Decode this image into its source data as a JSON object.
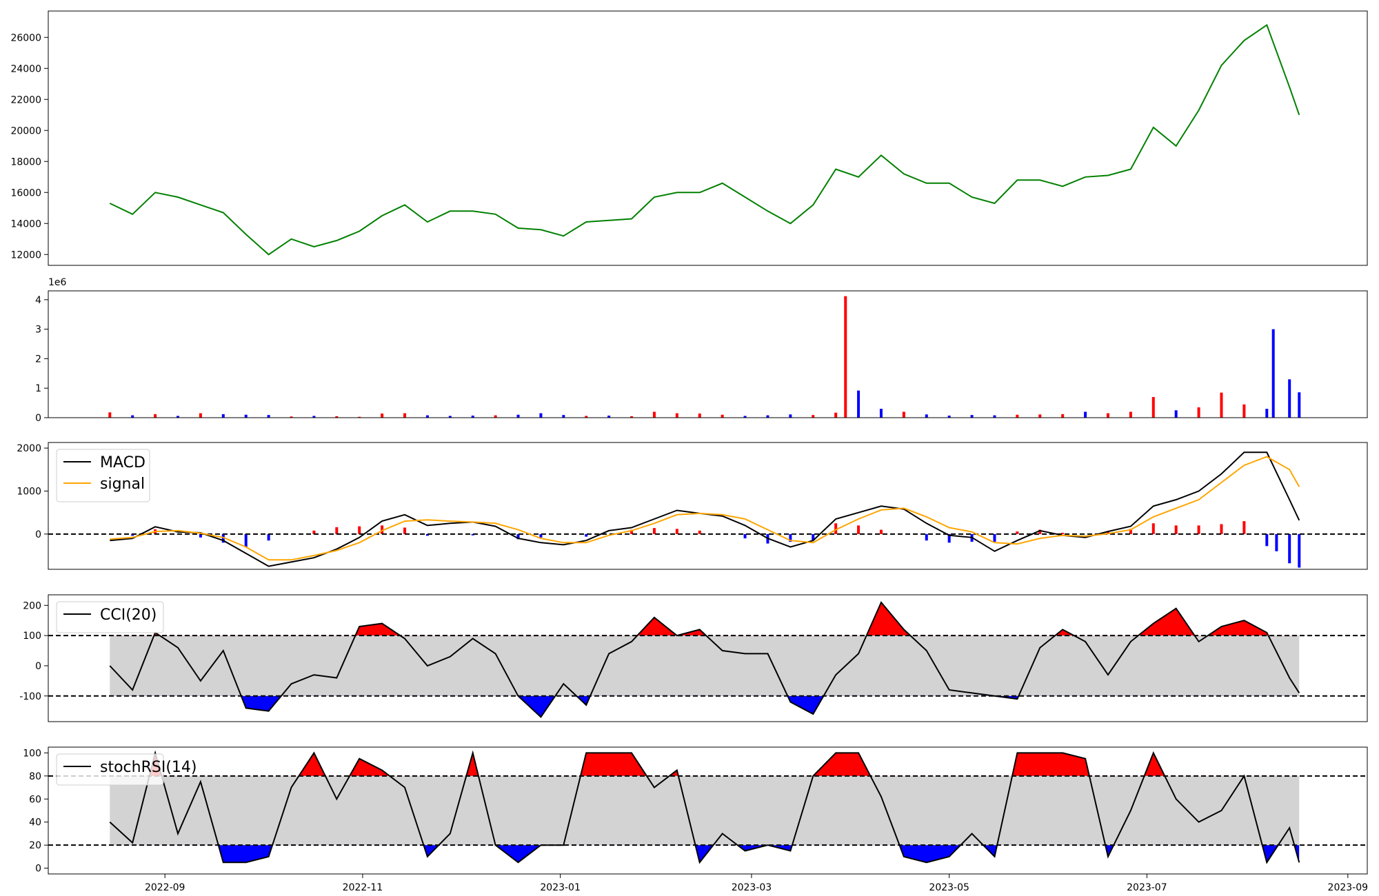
{
  "chart_data": [
    {
      "panel": "price",
      "type": "line",
      "line_color": "#008000",
      "ylim": [
        11300,
        27700
      ],
      "yticks": [
        "12000",
        "14000",
        "16000",
        "18000",
        "20000",
        "22000",
        "24000",
        "26000"
      ],
      "x": [
        "2022-08-15",
        "2022-08-22",
        "2022-08-29",
        "2022-09-05",
        "2022-09-12",
        "2022-09-19",
        "2022-09-26",
        "2022-10-03",
        "2022-10-10",
        "2022-10-17",
        "2022-10-24",
        "2022-10-31",
        "2022-11-07",
        "2022-11-14",
        "2022-11-21",
        "2022-11-28",
        "2022-12-05",
        "2022-12-12",
        "2022-12-19",
        "2022-12-26",
        "2023-01-02",
        "2023-01-09",
        "2023-01-16",
        "2023-01-23",
        "2023-01-30",
        "2023-02-06",
        "2023-02-13",
        "2023-02-20",
        "2023-02-27",
        "2023-03-06",
        "2023-03-13",
        "2023-03-20",
        "2023-03-27",
        "2023-04-03",
        "2023-04-10",
        "2023-04-17",
        "2023-04-24",
        "2023-05-01",
        "2023-05-08",
        "2023-05-15",
        "2023-05-22",
        "2023-05-29",
        "2023-06-05",
        "2023-06-12",
        "2023-06-19",
        "2023-06-26",
        "2023-07-03",
        "2023-07-10",
        "2023-07-17",
        "2023-07-24",
        "2023-07-31",
        "2023-08-07",
        "2023-08-14",
        "2023-08-17"
      ],
      "values": [
        15300,
        14600,
        16000,
        15700,
        15200,
        14700,
        13300,
        12000,
        13000,
        12500,
        12900,
        13500,
        14500,
        15200,
        14100,
        14800,
        14800,
        14600,
        13700,
        13600,
        13200,
        14100,
        14200,
        14300,
        15700,
        16000,
        16000,
        16600,
        15700,
        14800,
        14000,
        15200,
        17500,
        17000,
        18400,
        17200,
        16600,
        16600,
        15700,
        15300,
        16800,
        16800,
        16400,
        17000,
        17100,
        17500,
        20200,
        19000,
        21300,
        24200,
        25800,
        26800,
        22800,
        21000
      ]
    },
    {
      "panel": "volume",
      "type": "bar",
      "offset_label": "1e6",
      "ylim": [
        0,
        4300000
      ],
      "yticks": [
        "0",
        "1",
        "2",
        "3",
        "4"
      ],
      "up_color": "#ff0000",
      "down_color": "#0000ff",
      "x": [
        "2022-08-15",
        "2022-08-22",
        "2022-08-29",
        "2022-09-05",
        "2022-09-12",
        "2022-09-19",
        "2022-09-26",
        "2022-10-03",
        "2022-10-10",
        "2022-10-17",
        "2022-10-24",
        "2022-10-31",
        "2022-11-07",
        "2022-11-14",
        "2022-11-21",
        "2022-11-28",
        "2022-12-05",
        "2022-12-12",
        "2022-12-19",
        "2022-12-26",
        "2023-01-02",
        "2023-01-09",
        "2023-01-16",
        "2023-01-23",
        "2023-01-30",
        "2023-02-06",
        "2023-02-13",
        "2023-02-20",
        "2023-02-27",
        "2023-03-06",
        "2023-03-13",
        "2023-03-20",
        "2023-03-27",
        "2023-03-30",
        "2023-04-03",
        "2023-04-10",
        "2023-04-17",
        "2023-04-24",
        "2023-05-01",
        "2023-05-08",
        "2023-05-15",
        "2023-05-22",
        "2023-05-29",
        "2023-06-05",
        "2023-06-12",
        "2023-06-19",
        "2023-06-26",
        "2023-07-03",
        "2023-07-10",
        "2023-07-17",
        "2023-07-24",
        "2023-07-31",
        "2023-08-07",
        "2023-08-09",
        "2023-08-14",
        "2023-08-17"
      ],
      "values": [
        180000,
        80000,
        120000,
        60000,
        150000,
        120000,
        100000,
        90000,
        40000,
        60000,
        50000,
        30000,
        140000,
        150000,
        80000,
        60000,
        70000,
        80000,
        100000,
        150000,
        90000,
        60000,
        70000,
        50000,
        200000,
        150000,
        140000,
        100000,
        60000,
        80000,
        110000,
        90000,
        170000,
        4120000,
        920000,
        300000,
        200000,
        110000,
        70000,
        90000,
        80000,
        100000,
        110000,
        120000,
        200000,
        150000,
        200000,
        700000,
        250000,
        350000,
        850000,
        450000,
        300000,
        3000000,
        1300000,
        860000
      ],
      "direction": [
        "up",
        "down",
        "up",
        "down",
        "up",
        "down",
        "down",
        "down",
        "up",
        "down",
        "up",
        "up",
        "up",
        "up",
        "down",
        "down",
        "down",
        "up",
        "down",
        "down",
        "down",
        "up",
        "down",
        "up",
        "up",
        "up",
        "up",
        "up",
        "down",
        "down",
        "down",
        "up",
        "up",
        "up",
        "down",
        "down",
        "up",
        "down",
        "down",
        "down",
        "down",
        "up",
        "up",
        "up",
        "down",
        "up",
        "up",
        "up",
        "down",
        "up",
        "up",
        "up",
        "down",
        "down",
        "down",
        "down"
      ]
    },
    {
      "panel": "macd",
      "type": "line",
      "ylim": [
        -820,
        2130
      ],
      "yticks": [
        "0",
        "1000",
        "2000"
      ],
      "zero_line": true,
      "legend": [
        {
          "name": "MACD",
          "color": "#000000"
        },
        {
          "name": "signal",
          "color": "#ffa500"
        }
      ],
      "series": [
        {
          "name": "MACD",
          "color": "#000000",
          "x": [
            "2022-08-15",
            "2022-08-22",
            "2022-08-29",
            "2022-09-05",
            "2022-09-12",
            "2022-09-19",
            "2022-09-26",
            "2022-10-03",
            "2022-10-10",
            "2022-10-17",
            "2022-10-24",
            "2022-10-31",
            "2022-11-07",
            "2022-11-14",
            "2022-11-21",
            "2022-11-28",
            "2022-12-05",
            "2022-12-12",
            "2022-12-19",
            "2022-12-26",
            "2023-01-02",
            "2023-01-09",
            "2023-01-16",
            "2023-01-23",
            "2023-01-30",
            "2023-02-06",
            "2023-02-13",
            "2023-02-20",
            "2023-02-27",
            "2023-03-06",
            "2023-03-13",
            "2023-03-20",
            "2023-03-27",
            "2023-04-03",
            "2023-04-10",
            "2023-04-17",
            "2023-04-24",
            "2023-05-01",
            "2023-05-08",
            "2023-05-15",
            "2023-05-22",
            "2023-05-29",
            "2023-06-05",
            "2023-06-12",
            "2023-06-19",
            "2023-06-26",
            "2023-07-03",
            "2023-07-10",
            "2023-07-17",
            "2023-07-24",
            "2023-07-31",
            "2023-08-07",
            "2023-08-14",
            "2023-08-17"
          ],
          "values": [
            -150,
            -100,
            170,
            50,
            30,
            -150,
            -450,
            -750,
            -650,
            -550,
            -350,
            -80,
            300,
            450,
            200,
            250,
            280,
            180,
            -100,
            -200,
            -250,
            -150,
            80,
            150,
            350,
            550,
            480,
            420,
            200,
            -100,
            -300,
            -150,
            350,
            500,
            650,
            580,
            250,
            -30,
            -80,
            -400,
            -150,
            80,
            -30,
            -80,
            60,
            180,
            650,
            800,
            1000,
            1400,
            1900,
            1900,
            800,
            320
          ]
        },
        {
          "name": "signal",
          "color": "#ffa500",
          "x": [
            "2022-08-15",
            "2022-08-22",
            "2022-08-29",
            "2022-09-05",
            "2022-09-12",
            "2022-09-19",
            "2022-09-26",
            "2022-10-03",
            "2022-10-10",
            "2022-10-17",
            "2022-10-24",
            "2022-10-31",
            "2022-11-07",
            "2022-11-14",
            "2022-11-21",
            "2022-11-28",
            "2022-12-05",
            "2022-12-12",
            "2022-12-19",
            "2022-12-26",
            "2023-01-02",
            "2023-01-09",
            "2023-01-16",
            "2023-01-23",
            "2023-01-30",
            "2023-02-06",
            "2023-02-13",
            "2023-02-20",
            "2023-02-27",
            "2023-03-06",
            "2023-03-13",
            "2023-03-20",
            "2023-03-27",
            "2023-04-03",
            "2023-04-10",
            "2023-04-17",
            "2023-04-24",
            "2023-05-01",
            "2023-05-08",
            "2023-05-15",
            "2023-05-22",
            "2023-05-29",
            "2023-06-05",
            "2023-06-12",
            "2023-06-19",
            "2023-06-26",
            "2023-07-03",
            "2023-07-10",
            "2023-07-17",
            "2023-07-24",
            "2023-07-31",
            "2023-08-07",
            "2023-08-14",
            "2023-08-17"
          ],
          "values": [
            -120,
            -80,
            60,
            80,
            20,
            -80,
            -300,
            -600,
            -600,
            -500,
            -380,
            -200,
            80,
            300,
            330,
            300,
            280,
            250,
            100,
            -100,
            -200,
            -200,
            -30,
            80,
            250,
            450,
            480,
            450,
            350,
            100,
            -150,
            -200,
            100,
            350,
            560,
            600,
            400,
            150,
            50,
            -200,
            -230,
            -100,
            -30,
            -50,
            10,
            100,
            400,
            600,
            800,
            1200,
            1600,
            1800,
            1500,
            1100
          ]
        }
      ],
      "histogram": {
        "x": [
          "2022-08-22",
          "2022-08-29",
          "2022-09-12",
          "2022-09-19",
          "2022-09-26",
          "2022-10-03",
          "2022-10-17",
          "2022-10-24",
          "2022-10-31",
          "2022-11-07",
          "2022-11-14",
          "2022-11-21",
          "2022-12-05",
          "2022-12-19",
          "2022-12-26",
          "2023-01-09",
          "2023-01-23",
          "2023-01-30",
          "2023-02-06",
          "2023-02-13",
          "2023-02-27",
          "2023-03-06",
          "2023-03-13",
          "2023-03-20",
          "2023-03-27",
          "2023-04-03",
          "2023-04-10",
          "2023-04-24",
          "2023-05-01",
          "2023-05-08",
          "2023-05-15",
          "2023-05-22",
          "2023-05-29",
          "2023-06-05",
          "2023-06-19",
          "2023-06-26",
          "2023-07-03",
          "2023-07-10",
          "2023-07-17",
          "2023-07-24",
          "2023-07-31",
          "2023-08-07",
          "2023-08-10",
          "2023-08-14",
          "2023-08-17"
        ],
        "values": [
          -40,
          110,
          -80,
          -200,
          -300,
          -150,
          80,
          160,
          180,
          200,
          150,
          -40,
          -30,
          -120,
          -80,
          -60,
          100,
          140,
          120,
          80,
          -100,
          -220,
          -180,
          -150,
          250,
          200,
          100,
          -150,
          -200,
          -180,
          -180,
          60,
          100,
          30,
          60,
          120,
          250,
          200,
          200,
          230,
          300,
          -280,
          -400,
          -680,
          -780
        ]
      }
    },
    {
      "panel": "cci",
      "type": "line",
      "ylim": [
        -185,
        235
      ],
      "yticks": [
        "-100",
        "0",
        "100",
        "200"
      ],
      "thresholds": [
        100,
        -100
      ],
      "legend": [
        {
          "name": "CCI(20)",
          "color": "#000000"
        }
      ],
      "series": [
        {
          "name": "CCI(20)",
          "color": "#000000",
          "x": [
            "2022-08-15",
            "2022-08-22",
            "2022-08-29",
            "2022-09-05",
            "2022-09-12",
            "2022-09-19",
            "2022-09-26",
            "2022-10-03",
            "2022-10-10",
            "2022-10-17",
            "2022-10-24",
            "2022-10-31",
            "2022-11-07",
            "2022-11-14",
            "2022-11-21",
            "2022-11-28",
            "2022-12-05",
            "2022-12-12",
            "2022-12-19",
            "2022-12-26",
            "2023-01-02",
            "2023-01-09",
            "2023-01-16",
            "2023-01-23",
            "2023-01-30",
            "2023-02-06",
            "2023-02-13",
            "2023-02-20",
            "2023-02-27",
            "2023-03-06",
            "2023-03-13",
            "2023-03-20",
            "2023-03-27",
            "2023-04-03",
            "2023-04-10",
            "2023-04-17",
            "2023-04-24",
            "2023-05-01",
            "2023-05-08",
            "2023-05-15",
            "2023-05-22",
            "2023-05-29",
            "2023-06-05",
            "2023-06-12",
            "2023-06-19",
            "2023-06-26",
            "2023-07-03",
            "2023-07-10",
            "2023-07-17",
            "2023-07-24",
            "2023-07-31",
            "2023-08-07",
            "2023-08-14",
            "2023-08-17"
          ],
          "values": [
            0,
            -80,
            110,
            60,
            -50,
            50,
            -140,
            -150,
            -60,
            -30,
            -40,
            130,
            140,
            90,
            0,
            30,
            90,
            40,
            -100,
            -170,
            -60,
            -130,
            40,
            80,
            160,
            100,
            120,
            50,
            40,
            40,
            -120,
            -160,
            -30,
            40,
            210,
            120,
            50,
            -80,
            -90,
            -100,
            -110,
            60,
            120,
            80,
            -30,
            80,
            140,
            190,
            80,
            130,
            150,
            110,
            -40,
            -90
          ]
        }
      ],
      "fill_upper_color": "#ff0000",
      "fill_lower_color": "#0000ff",
      "band_color": "#d3d3d3"
    },
    {
      "panel": "stochrsi",
      "type": "line",
      "ylim": [
        -5,
        105
      ],
      "yticks": [
        "0",
        "20",
        "40",
        "60",
        "80",
        "100"
      ],
      "thresholds": [
        80,
        20
      ],
      "legend": [
        {
          "name": "stochRSI(14)",
          "color": "#000000"
        }
      ],
      "xticks": [
        "2022-09",
        "2022-11",
        "2023-01",
        "2023-03",
        "2023-05",
        "2023-07",
        "2023-09"
      ],
      "series": [
        {
          "name": "stochRSI(14)",
          "color": "#000000",
          "x": [
            "2022-08-15",
            "2022-08-22",
            "2022-08-29",
            "2022-09-05",
            "2022-09-12",
            "2022-09-19",
            "2022-09-26",
            "2022-10-03",
            "2022-10-10",
            "2022-10-17",
            "2022-10-24",
            "2022-10-31",
            "2022-11-07",
            "2022-11-14",
            "2022-11-21",
            "2022-11-28",
            "2022-12-05",
            "2022-12-12",
            "2022-12-19",
            "2022-12-26",
            "2023-01-02",
            "2023-01-09",
            "2023-01-16",
            "2023-01-23",
            "2023-01-30",
            "2023-02-06",
            "2023-02-13",
            "2023-02-20",
            "2023-02-27",
            "2023-03-06",
            "2023-03-13",
            "2023-03-20",
            "2023-03-27",
            "2023-04-03",
            "2023-04-10",
            "2023-04-17",
            "2023-04-24",
            "2023-05-01",
            "2023-05-08",
            "2023-05-15",
            "2023-05-22",
            "2023-05-29",
            "2023-06-05",
            "2023-06-12",
            "2023-06-19",
            "2023-06-26",
            "2023-07-03",
            "2023-07-10",
            "2023-07-17",
            "2023-07-24",
            "2023-07-31",
            "2023-08-07",
            "2023-08-14",
            "2023-08-17"
          ],
          "values": [
            40,
            22,
            100,
            30,
            75,
            5,
            5,
            10,
            70,
            100,
            60,
            95,
            85,
            70,
            10,
            30,
            100,
            20,
            5,
            20,
            20,
            100,
            100,
            100,
            70,
            85,
            5,
            30,
            15,
            20,
            15,
            80,
            100,
            100,
            62,
            10,
            5,
            10,
            30,
            10,
            100,
            100,
            100,
            95,
            10,
            50,
            100,
            60,
            40,
            50,
            80,
            5,
            35,
            5
          ]
        }
      ],
      "fill_upper_color": "#ff0000",
      "fill_lower_color": "#0000ff",
      "band_color": "#d3d3d3"
    }
  ]
}
